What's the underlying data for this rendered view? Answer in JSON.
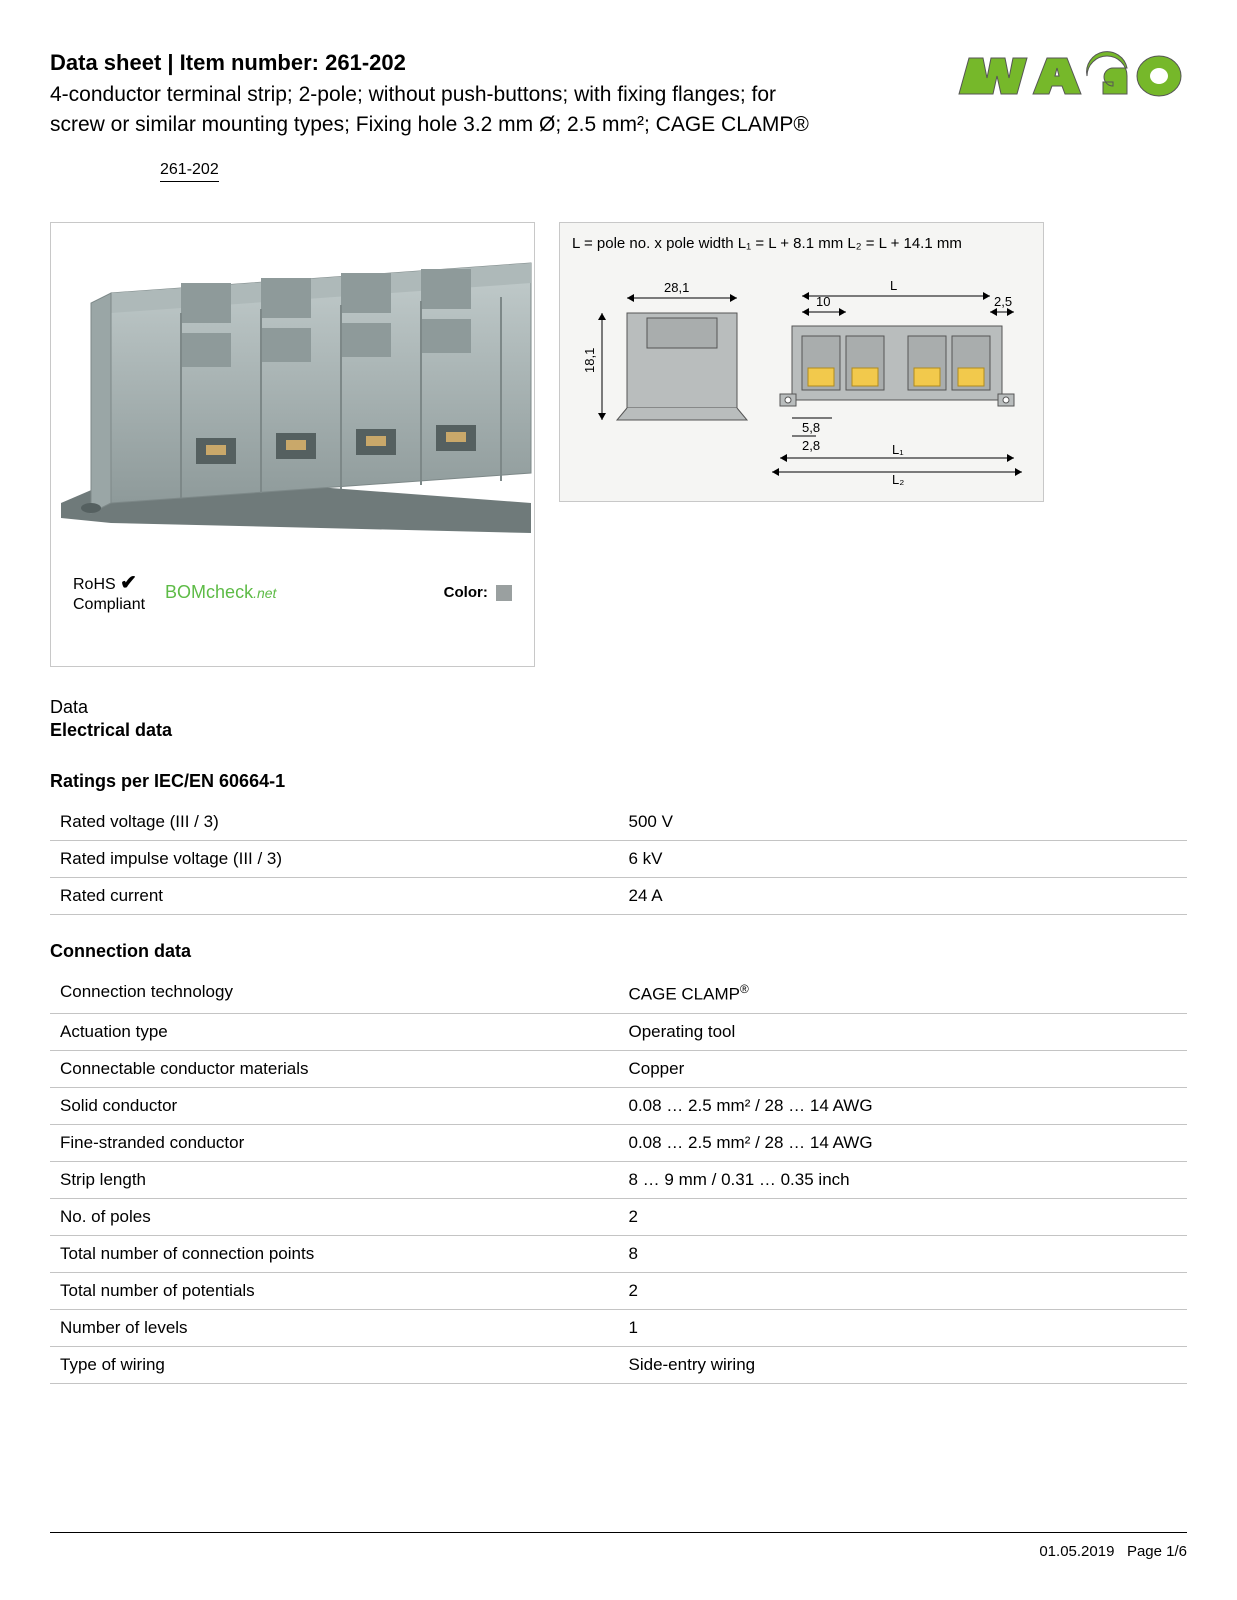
{
  "header": {
    "title_prefix": "Data sheet  |  Item number: ",
    "item_number": "261-202",
    "subtitle": "4-conductor terminal strip; 2-pole; without push-buttons; with fixing flanges; for screw or similar mounting types; Fixing hole 3.2 mm Ø; 2.5 mm²; CAGE CLAMP®",
    "item_link": "261-202"
  },
  "logo": {
    "text": "WAGO",
    "fill": "#76b82a",
    "outline": "#555555"
  },
  "product_panel": {
    "rohs_line1": "RoHS",
    "rohs_check": "✔",
    "rohs_line2": "Compliant",
    "bomcheck_main": "BOM",
    "bomcheck_mid": "check",
    "bomcheck_suffix": "net",
    "color_label": "Color:",
    "color_swatch": "#9aa0a0",
    "render_colors": {
      "body": "#aeb9b9",
      "body_light": "#c2cccc",
      "body_dark": "#8e9a9a",
      "contact": "#c9a86a",
      "base": "#6f7a7a"
    }
  },
  "diagram_panel": {
    "formula": "L = pole no. x pole width   L₁ = L + 8.1 mm   L₂ = L + 14.1 mm",
    "dims": {
      "width_28_1": "28,1",
      "height_18_1": "18,1",
      "pitch_10": "10",
      "edge_2_5": "2,5",
      "L_label": "L",
      "L1_label": "L₁",
      "L2_label": "L₂",
      "sub_5_8": "5,8",
      "sub_2_8": "2,8"
    },
    "colors": {
      "block": "#b9bdbd",
      "outline": "#555555",
      "contact": "#f2c94c",
      "background": "#f5f5f3"
    }
  },
  "data_label": "Data",
  "electrical_heading": "Electrical data",
  "ratings_heading": "Ratings per IEC/EN 60664-1",
  "ratings_rows": [
    {
      "label": "Rated voltage (III / 3)",
      "value": "500 V"
    },
    {
      "label": "Rated impulse voltage (III / 3)",
      "value": "6 kV"
    },
    {
      "label": "Rated current",
      "value": "24 A"
    }
  ],
  "connection_heading": "Connection data",
  "connection_rows": [
    {
      "label": "Connection technology",
      "value": "CAGE CLAMP®"
    },
    {
      "label": "Actuation type",
      "value": "Operating tool"
    },
    {
      "label": "Connectable conductor materials",
      "value": "Copper"
    },
    {
      "label": "Solid conductor",
      "value": "0.08 … 2.5 mm² / 28 … 14 AWG"
    },
    {
      "label": "Fine-stranded conductor",
      "value": "0.08 … 2.5 mm² / 28 … 14 AWG"
    },
    {
      "label": "Strip length",
      "value": "8 … 9 mm / 0.31 … 0.35 inch"
    },
    {
      "label": "No. of poles",
      "value": "2"
    },
    {
      "label": "Total number of connection points",
      "value": "8"
    },
    {
      "label": "Total number of potentials",
      "value": "2"
    },
    {
      "label": "Number of levels",
      "value": "1"
    },
    {
      "label": "Type of wiring",
      "value": "Side-entry wiring"
    }
  ],
  "footer": {
    "date": "01.05.2019",
    "page": "Page 1/6"
  }
}
